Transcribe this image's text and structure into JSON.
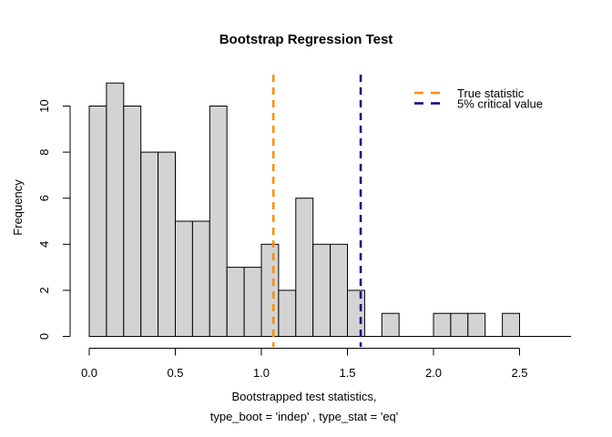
{
  "window": {
    "background": "#ffffff"
  },
  "chart_data": {
    "type": "bar",
    "subtype": "histogram",
    "title": "Bootstrap Regression Test",
    "ylabel": "Frequency",
    "xlabel_line1": "Bootstrapped test statistics,",
    "xlabel_line2": "type_boot = 'indep' , type_stat = 'eq'",
    "xlim": [
      0,
      2.5
    ],
    "ylim": [
      0,
      11
    ],
    "grid": false,
    "bin_start": 0.0,
    "bin_width": 0.1,
    "frequencies": [
      10,
      11,
      10,
      8,
      8,
      5,
      5,
      10,
      3,
      3,
      4,
      2,
      6,
      4,
      4,
      2,
      0,
      1,
      0,
      0,
      1,
      1,
      1,
      0,
      1
    ],
    "x_ticks": [
      {
        "value": 0.0,
        "label": "0.0"
      },
      {
        "value": 0.5,
        "label": "0.5"
      },
      {
        "value": 1.0,
        "label": "1.0"
      },
      {
        "value": 1.5,
        "label": "1.5"
      },
      {
        "value": 2.0,
        "label": "2.0"
      },
      {
        "value": 2.5,
        "label": "2.5"
      }
    ],
    "y_ticks": [
      {
        "value": 0,
        "label": "0"
      },
      {
        "value": 2,
        "label": "2"
      },
      {
        "value": 4,
        "label": "4"
      },
      {
        "value": 6,
        "label": "6"
      },
      {
        "value": 8,
        "label": "8"
      },
      {
        "value": 10,
        "label": "10"
      }
    ],
    "bar_fill": "#d3d3d3",
    "bar_stroke": "#000000",
    "vlines": [
      {
        "name": "true-statistic",
        "value": 1.07,
        "color": "#ff8c00",
        "style": "dashed"
      },
      {
        "name": "critical-value-5pct",
        "value": 1.577,
        "color": "#00008b",
        "style": "dashed"
      }
    ],
    "legend": {
      "position": "top-right",
      "items": [
        {
          "label": "True statistic",
          "color": "#ff8c00"
        },
        {
          "label": "5% critical value",
          "color": "#00008b"
        }
      ]
    }
  }
}
